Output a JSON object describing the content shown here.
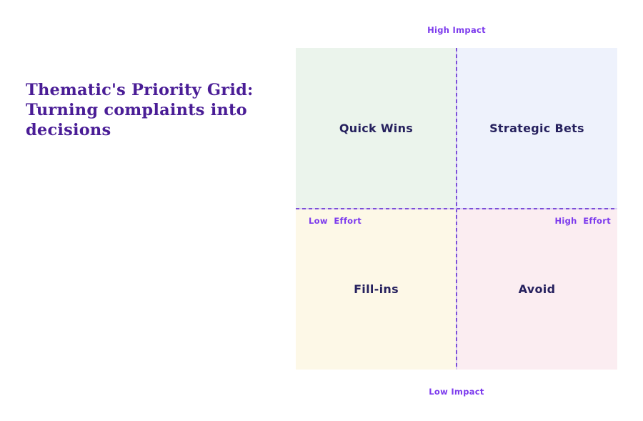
{
  "title": {
    "lines": [
      "Thematic's Priority Grid:",
      "Turning complaints into",
      "decisions"
    ]
  },
  "grid": {
    "quadrants": [
      {
        "position": "top-left",
        "label": "Quick Wins",
        "bg": "#EBF4EC"
      },
      {
        "position": "top-right",
        "label": "Strategic Bets",
        "bg": "#EEF2FC"
      },
      {
        "position": "bottom-left",
        "label": "Fill-ins",
        "bg": "#FDF8E7"
      },
      {
        "position": "bottom-right",
        "label": "Avoid",
        "bg": "#FBEDF1"
      }
    ],
    "axes": {
      "top": "High Impact",
      "bottom": "Low Impact",
      "left": "Low  Effort",
      "right": "High  Effort"
    }
  },
  "colors": {
    "title_text": "#4A1D96",
    "axis_label": "#7C3AED",
    "quadrant_label": "#26215E",
    "divider_dash": "#7C4FD8",
    "divider_gap": "#DACFF4",
    "background": "#FFFFFF"
  }
}
